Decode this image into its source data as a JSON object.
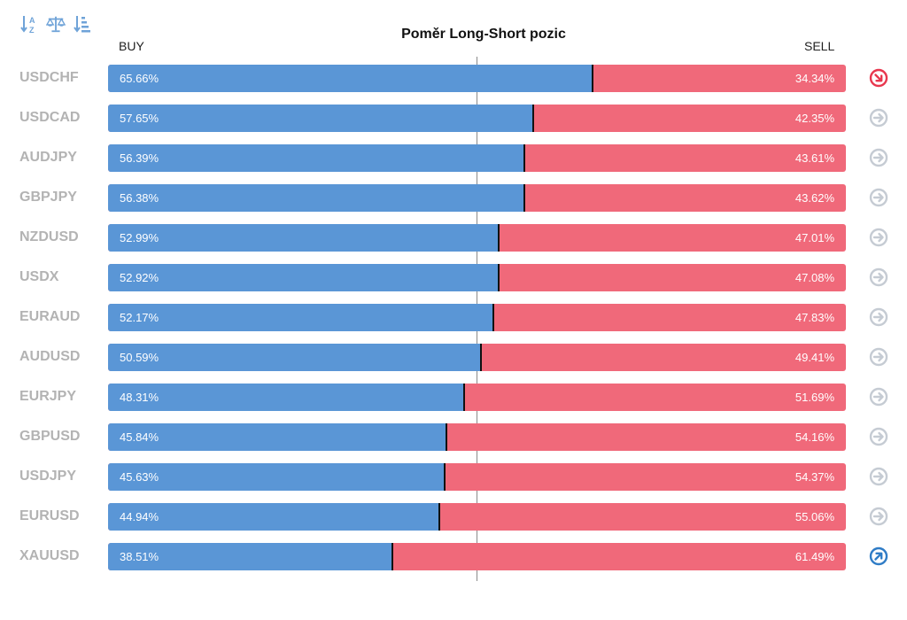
{
  "toolbar": {
    "icons": [
      "sort-alpha-icon",
      "balance-scale-icon",
      "sort-amount-icon"
    ]
  },
  "colors": {
    "buy": "#5a96d6",
    "sell": "#f0697a",
    "neutral_signal": "#c5cbd3",
    "down_signal": "#e8374e",
    "up_signal": "#2f7cc6"
  },
  "chart_data": {
    "type": "bar",
    "stacked": true,
    "orientation": "horizontal",
    "title": "Poměr Long-Short pozic",
    "left_label": "BUY",
    "right_label": "SELL",
    "xlim": [
      0,
      100
    ],
    "categories": [
      "USDCHF",
      "USDCAD",
      "AUDJPY",
      "GBPJPY",
      "NZDUSD",
      "USDX",
      "EURAUD",
      "AUDUSD",
      "EURJPY",
      "GBPUSD",
      "USDJPY",
      "EURUSD",
      "XAUUSD"
    ],
    "series": [
      {
        "name": "BUY",
        "values": [
          65.66,
          57.65,
          56.39,
          56.38,
          52.99,
          52.92,
          52.17,
          50.59,
          48.31,
          45.84,
          45.63,
          44.94,
          38.51
        ]
      },
      {
        "name": "SELL",
        "values": [
          34.34,
          42.35,
          43.61,
          43.62,
          47.01,
          47.08,
          47.83,
          49.41,
          51.69,
          54.16,
          54.37,
          55.06,
          61.49
        ]
      }
    ],
    "rows": [
      {
        "pair": "USDCHF",
        "buy": 65.66,
        "sell": 34.34,
        "buy_label": "65.66%",
        "sell_label": "34.34%",
        "signal": "down"
      },
      {
        "pair": "USDCAD",
        "buy": 57.65,
        "sell": 42.35,
        "buy_label": "57.65%",
        "sell_label": "42.35%",
        "signal": "neutral"
      },
      {
        "pair": "AUDJPY",
        "buy": 56.39,
        "sell": 43.61,
        "buy_label": "56.39%",
        "sell_label": "43.61%",
        "signal": "neutral"
      },
      {
        "pair": "GBPJPY",
        "buy": 56.38,
        "sell": 43.62,
        "buy_label": "56.38%",
        "sell_label": "43.62%",
        "signal": "neutral"
      },
      {
        "pair": "NZDUSD",
        "buy": 52.99,
        "sell": 47.01,
        "buy_label": "52.99%",
        "sell_label": "47.01%",
        "signal": "neutral"
      },
      {
        "pair": "USDX",
        "buy": 52.92,
        "sell": 47.08,
        "buy_label": "52.92%",
        "sell_label": "47.08%",
        "signal": "neutral"
      },
      {
        "pair": "EURAUD",
        "buy": 52.17,
        "sell": 47.83,
        "buy_label": "52.17%",
        "sell_label": "47.83%",
        "signal": "neutral"
      },
      {
        "pair": "AUDUSD",
        "buy": 50.59,
        "sell": 49.41,
        "buy_label": "50.59%",
        "sell_label": "49.41%",
        "signal": "neutral"
      },
      {
        "pair": "EURJPY",
        "buy": 48.31,
        "sell": 51.69,
        "buy_label": "48.31%",
        "sell_label": "51.69%",
        "signal": "neutral"
      },
      {
        "pair": "GBPUSD",
        "buy": 45.84,
        "sell": 54.16,
        "buy_label": "45.84%",
        "sell_label": "54.16%",
        "signal": "neutral"
      },
      {
        "pair": "USDJPY",
        "buy": 45.63,
        "sell": 54.37,
        "buy_label": "45.63%",
        "sell_label": "54.37%",
        "signal": "neutral"
      },
      {
        "pair": "EURUSD",
        "buy": 44.94,
        "sell": 55.06,
        "buy_label": "44.94%",
        "sell_label": "55.06%",
        "signal": "neutral"
      },
      {
        "pair": "XAUUSD",
        "buy": 38.51,
        "sell": 61.49,
        "buy_label": "38.51%",
        "sell_label": "61.49%",
        "signal": "up"
      }
    ]
  }
}
